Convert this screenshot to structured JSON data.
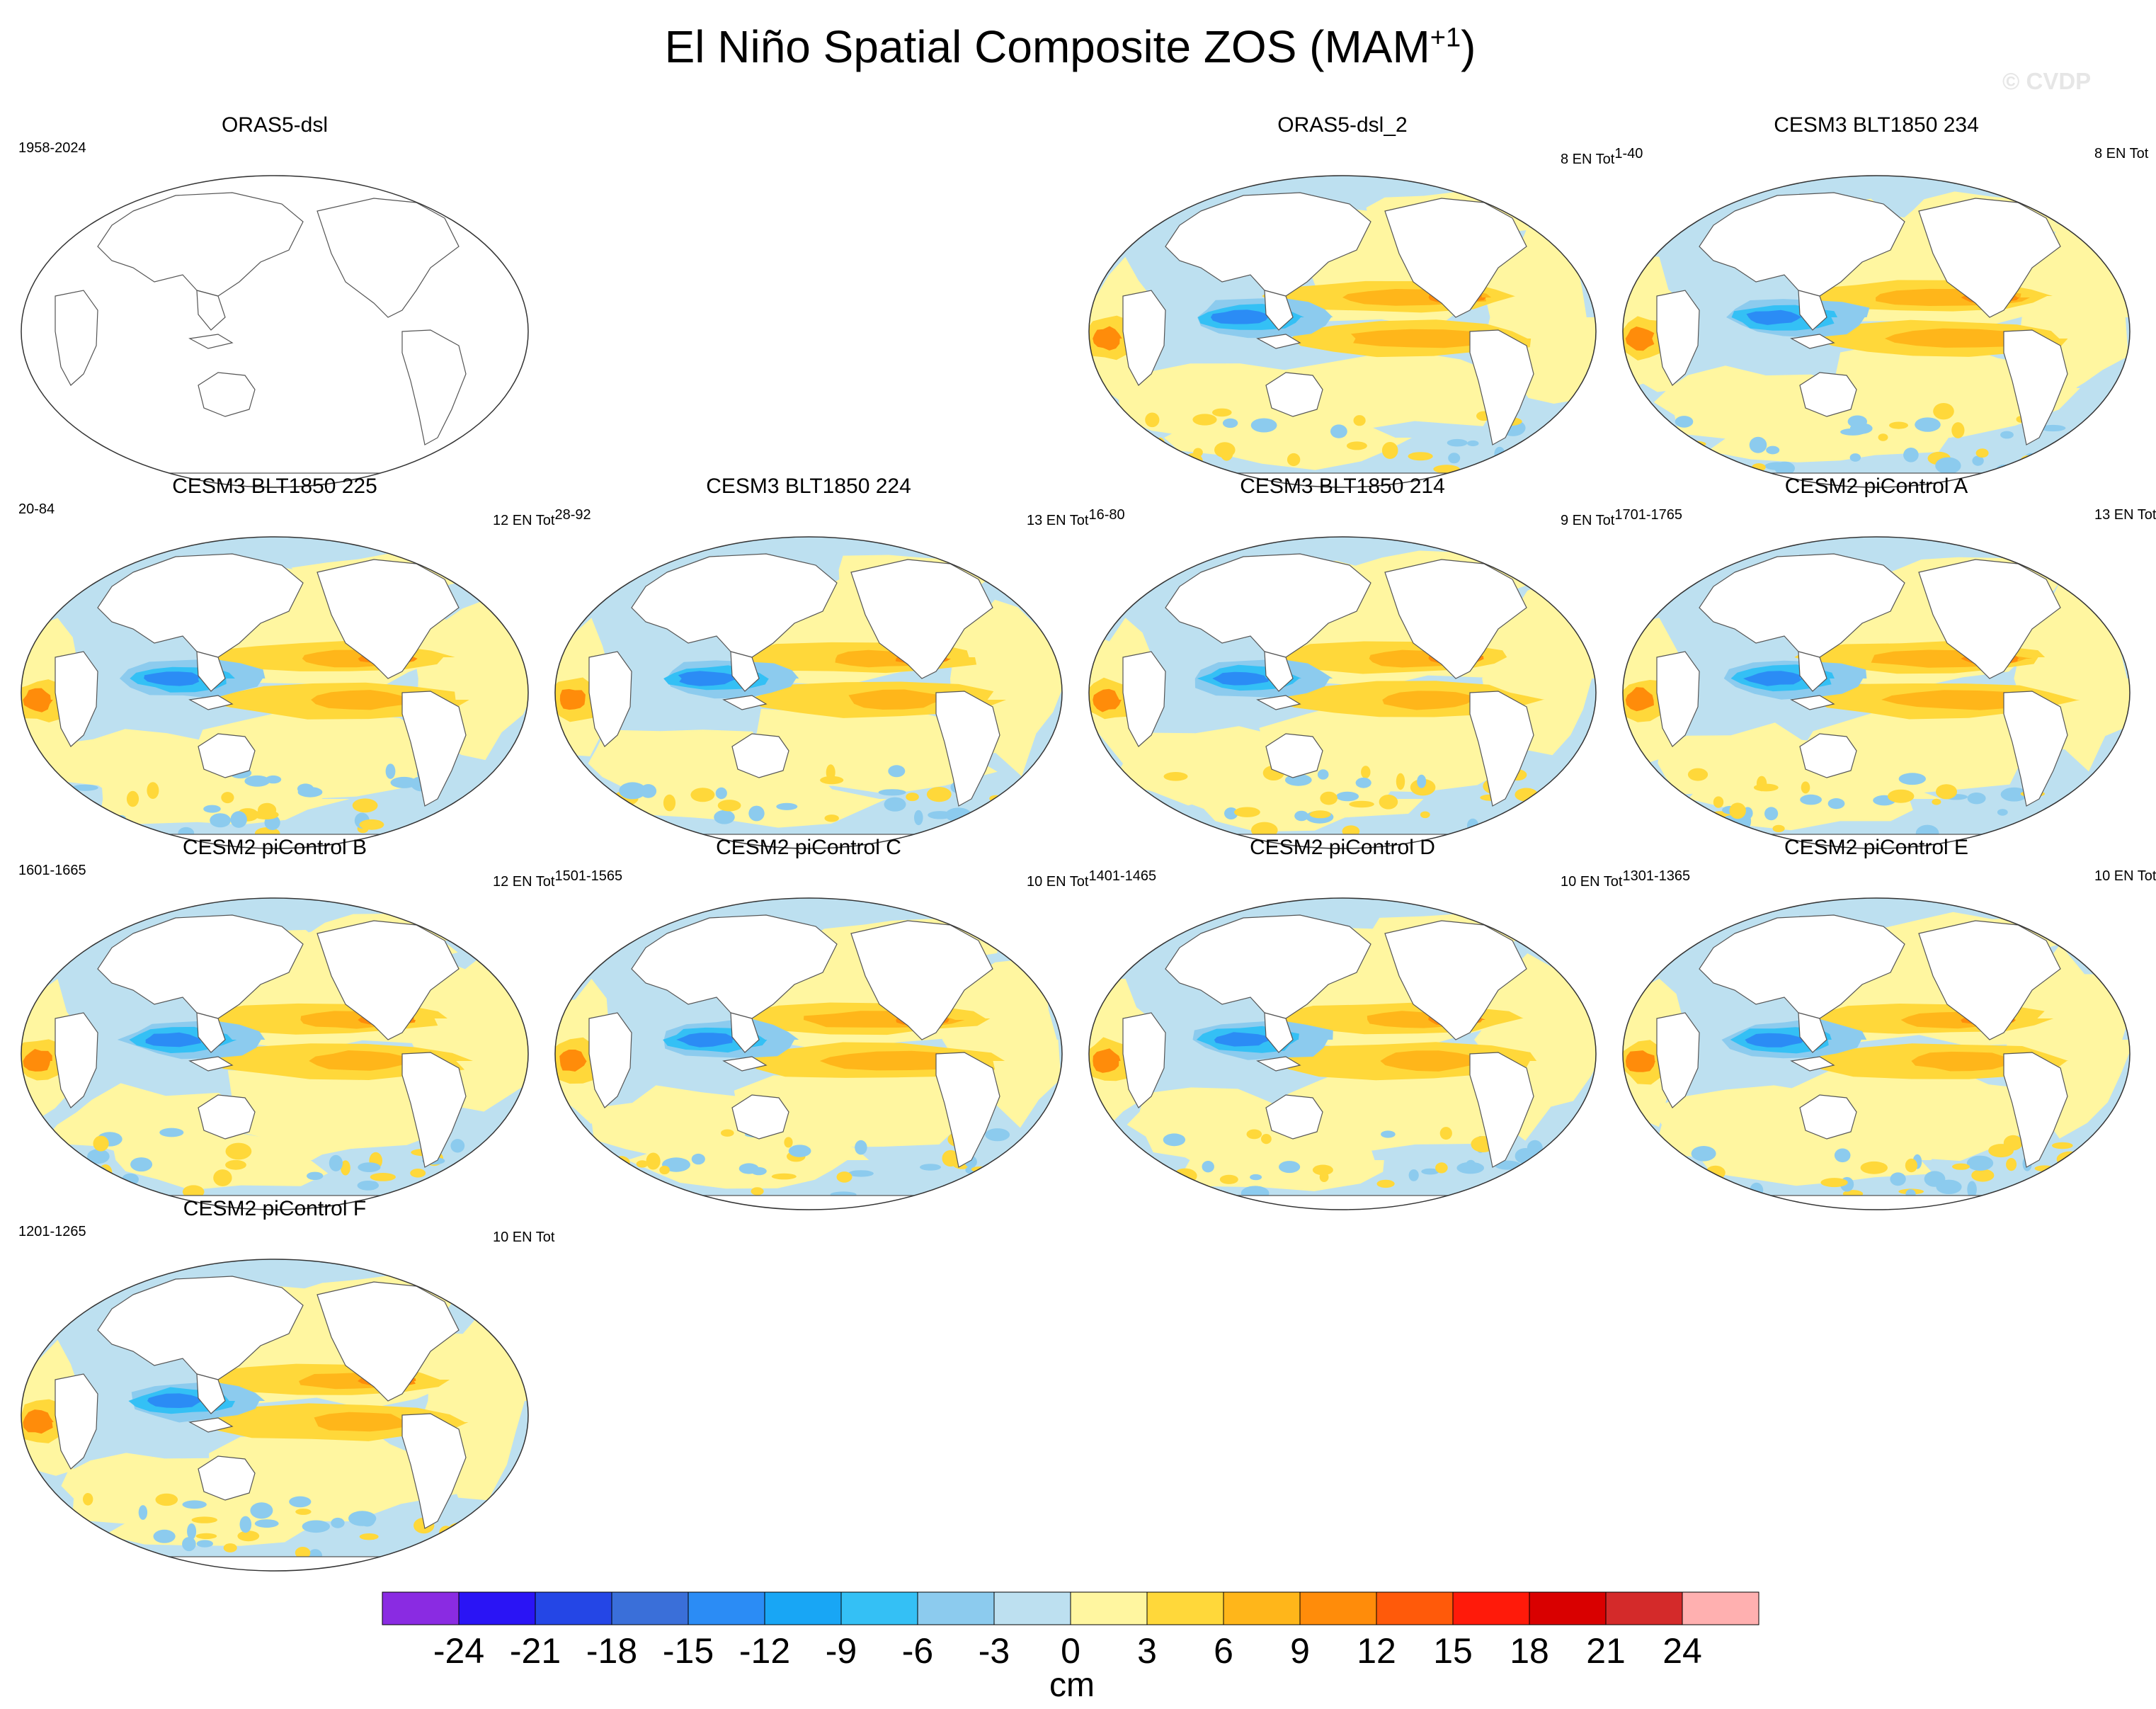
{
  "figure": {
    "title": "El Niño Spatial Composite ZOS (MAM",
    "title_superscript": "+1",
    "title_close": ")",
    "watermark": "© CVDP"
  },
  "panels": [
    {
      "id": "orasdsl",
      "title": "ORAS5-dsl",
      "left": "1958-2024",
      "right": "",
      "right_sup": "",
      "blank": true
    },
    {
      "id": "orasdsl2",
      "title": "ORAS5-dsl_2",
      "left": "",
      "right": "8 EN Tot",
      "right_sup": "1-40",
      "variant": 0
    },
    {
      "id": "b234",
      "title": "CESM3 BLT1850 234",
      "left": "",
      "right": "8 EN Tot",
      "right_sup": "",
      "variant": 1
    },
    {
      "id": "b225",
      "title": "CESM3 BLT1850 225",
      "left": "20-84",
      "right": "12 EN Tot",
      "right_sup": "28-92",
      "variant": 2
    },
    {
      "id": "b224",
      "title": "CESM3 BLT1850 224",
      "left": "",
      "right": "13 EN Tot",
      "right_sup": "16-80",
      "variant": 3
    },
    {
      "id": "b214",
      "title": "CESM3 BLT1850 214",
      "left": "",
      "right": "9 EN Tot",
      "right_sup": "1701-1765",
      "variant": 4
    },
    {
      "id": "pa",
      "title": "CESM2 piControl A",
      "left": "",
      "right": "13 EN Tot",
      "right_sup": "",
      "variant": 5
    },
    {
      "id": "pb",
      "title": "CESM2 piControl B",
      "left": "1601-1665",
      "right": "12 EN Tot",
      "right_sup": "1501-1565",
      "variant": 6
    },
    {
      "id": "pc",
      "title": "CESM2 piControl C",
      "left": "",
      "right": "10 EN Tot",
      "right_sup": "1401-1465",
      "variant": 7
    },
    {
      "id": "pd",
      "title": "CESM2 piControl D",
      "left": "",
      "right": "10 EN Tot",
      "right_sup": "1301-1365",
      "variant": 8
    },
    {
      "id": "pe",
      "title": "CESM2 piControl E",
      "left": "",
      "right": "10 EN Tot",
      "right_sup": "",
      "variant": 9
    },
    {
      "id": "pf",
      "title": "CESM2 piControl F",
      "left": "1201-1265",
      "right": "10 EN Tot",
      "right_sup": "",
      "variant": 10
    }
  ],
  "colorbar": {
    "units": "cm",
    "labels": [
      "-24",
      "-21",
      "-18",
      "-15",
      "-12",
      "-9",
      "-6",
      "-3",
      "0",
      "3",
      "6",
      "9",
      "12",
      "15",
      "18",
      "21",
      "24"
    ],
    "colors": [
      "#8a2be2",
      "#2a14f5",
      "#2446e6",
      "#3a6fd9",
      "#2b8cf5",
      "#18a6f5",
      "#34c0f5",
      "#8ccbee",
      "#bde0f0",
      "#fff6a0",
      "#ffd83a",
      "#ffb61a",
      "#ff8c0a",
      "#ff5a0a",
      "#ff1a0a",
      "#d90000",
      "#d42a2a",
      "#ffb0b0"
    ]
  }
}
